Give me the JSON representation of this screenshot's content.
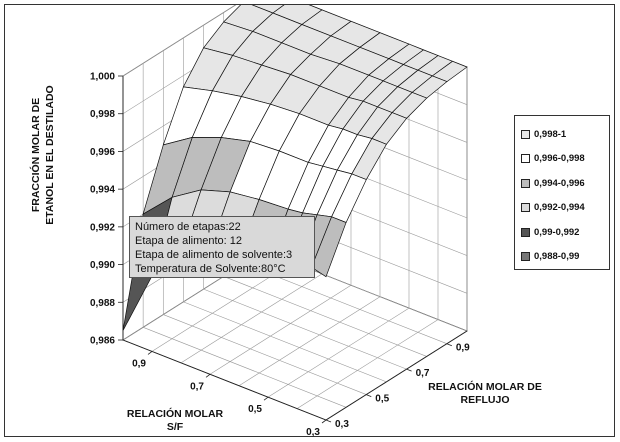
{
  "chart_data": {
    "type": "surface3d",
    "title": "",
    "ylabel_lines": [
      "FRACCIÓN MOLAR DE",
      "ETANOL EN EL DESTILADO"
    ],
    "xlabel_lines": [
      "RELACIÓN MOLAR",
      "S/F"
    ],
    "zlabel_lines": [
      "RELACIÓN MOLAR DE",
      "REFLUJO"
    ],
    "y_ticks": [
      "0,986",
      "0,988",
      "0,990",
      "0,992",
      "0,994",
      "0,996",
      "0,998",
      "1,000"
    ],
    "y_range": [
      0.986,
      1.0
    ],
    "sf_ticks": [
      "0,9",
      "0,7",
      "0,5",
      "0,3"
    ],
    "sf_range": [
      0.3,
      1.0
    ],
    "reflux_ticks": [
      "0,3",
      "0,5",
      "0,7",
      "0,9"
    ],
    "reflux_range": [
      0.3,
      1.0
    ],
    "sf_values": [
      0.3,
      0.35,
      0.4,
      0.45,
      0.5,
      0.6,
      0.7,
      0.8,
      0.9,
      1.0
    ],
    "reflux_values": [
      0.3,
      0.4,
      0.5,
      0.6,
      0.7,
      0.8,
      0.9,
      1.0
    ],
    "z_values": [
      [
        0.9936,
        0.9958,
        0.9974,
        0.9986,
        0.9993,
        0.9997,
        0.9999,
        1.0
      ],
      [
        0.9938,
        0.9958,
        0.9974,
        0.9986,
        0.9993,
        0.9997,
        0.9999,
        1.0
      ],
      [
        0.9934,
        0.9956,
        0.9973,
        0.9985,
        0.9993,
        0.9997,
        0.9999,
        1.0
      ],
      [
        0.9932,
        0.9954,
        0.9972,
        0.9985,
        0.9993,
        0.9997,
        0.9999,
        1.0
      ],
      [
        0.993,
        0.9953,
        0.9971,
        0.9984,
        0.9992,
        0.9997,
        0.9999,
        1.0
      ],
      [
        0.993,
        0.9952,
        0.9971,
        0.9984,
        0.9992,
        0.9997,
        0.9999,
        1.0
      ],
      [
        0.9926,
        0.995,
        0.997,
        0.9983,
        0.9992,
        0.9996,
        0.9999,
        1.0
      ],
      [
        0.992,
        0.9945,
        0.9966,
        0.9981,
        0.9991,
        0.9996,
        0.9999,
        1.0
      ],
      [
        0.99,
        0.9935,
        0.996,
        0.9978,
        0.999,
        0.9996,
        0.9999,
        1.0
      ],
      [
        0.9865,
        0.992,
        0.995,
        0.9974,
        0.9988,
        0.9995,
        0.9999,
        1.0
      ]
    ],
    "grid": true,
    "legend_position": "right",
    "legend": [
      {
        "label": "0,998-1",
        "color": "#e6e6e6"
      },
      {
        "label": "0,996-0,998",
        "color": "#ffffff"
      },
      {
        "label": "0,994-0,996",
        "color": "#bdbdbd"
      },
      {
        "label": "0,992-0,994",
        "color": "#dcdcdc"
      },
      {
        "label": "0,99-0,992",
        "color": "#555555"
      },
      {
        "label": "0,988-0,99",
        "color": "#777777"
      }
    ],
    "annotation_lines": [
      "Número de etapas:22",
      "Etapa de alimento: 12",
      "Etapa de alimento de solvente:3",
      "Temperatura de Solvente:80°C"
    ]
  }
}
